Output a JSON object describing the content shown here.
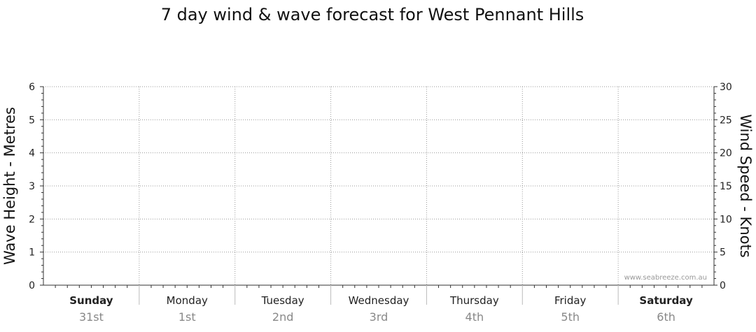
{
  "chart_data": {
    "type": "line",
    "title": "7 day wind & wave forecast for West Pennant Hills",
    "ylabel": "Wave Height - Metres",
    "y2label": "Wind Speed - Knots",
    "ylim": [
      0,
      6
    ],
    "y2lim": [
      0,
      30
    ],
    "yticks": [
      "0",
      "1",
      "2",
      "3",
      "4",
      "5",
      "6"
    ],
    "y2ticks": [
      "0",
      "5",
      "10",
      "15",
      "20",
      "25",
      "30"
    ],
    "grid": true,
    "days": [
      {
        "name": "Sunday",
        "date": "31st",
        "bold": true
      },
      {
        "name": "Monday",
        "date": "1st",
        "bold": false
      },
      {
        "name": "Tuesday",
        "date": "2nd",
        "bold": false
      },
      {
        "name": "Wednesday",
        "date": "3rd",
        "bold": false
      },
      {
        "name": "Thursday",
        "date": "4th",
        "bold": false
      },
      {
        "name": "Friday",
        "date": "5th",
        "bold": false
      },
      {
        "name": "Saturday",
        "date": "6th",
        "bold": true
      }
    ],
    "series": []
  },
  "watermark": "www.seabreeze.com.au"
}
